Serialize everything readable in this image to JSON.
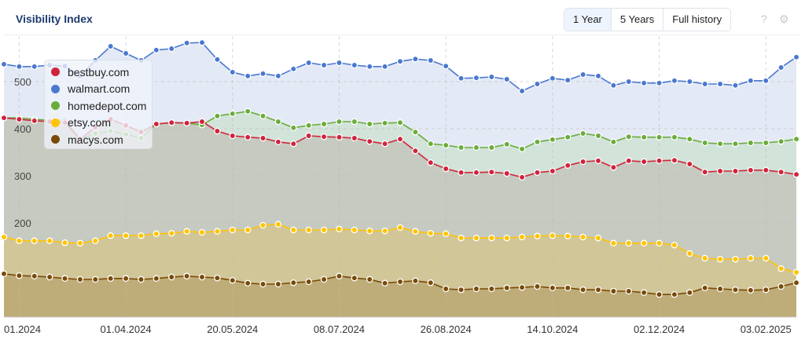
{
  "header": {
    "title": "Visibility Index",
    "range_buttons": [
      "1 Year",
      "5 Years",
      "Full history"
    ],
    "active": "1 Year",
    "help_icon": "?",
    "settings_icon": "⚙"
  },
  "chart_data": {
    "type": "area",
    "title": "Visibility Index",
    "ylim": [
      0,
      583
    ],
    "yticks": [
      200,
      300,
      400,
      500
    ],
    "x_count": 53,
    "xticks": [
      {
        "index": 1,
        "label": "01.2024"
      },
      {
        "index": 8,
        "label": "01.04.2024"
      },
      {
        "index": 15,
        "label": "20.05.2024"
      },
      {
        "index": 22,
        "label": "08.07.2024"
      },
      {
        "index": 29,
        "label": "26.08.2024"
      },
      {
        "index": 36,
        "label": "14.10.2024"
      },
      {
        "index": 43,
        "label": "02.12.2024"
      },
      {
        "index": 50,
        "label": "03.02.2025"
      }
    ],
    "grid": true,
    "legend_position": "top-left",
    "series": [
      {
        "name": "walmart.com",
        "color": "#4a78d0",
        "fill": "#dfe5f4",
        "values": [
          537,
          532,
          532,
          535,
          533,
          512,
          545,
          575,
          560,
          545,
          567,
          570,
          582,
          583,
          547,
          520,
          512,
          517,
          512,
          527,
          540,
          535,
          540,
          535,
          532,
          532,
          543,
          548,
          545,
          533,
          507,
          508,
          510,
          505,
          480,
          495,
          507,
          503,
          515,
          512,
          492,
          500,
          497,
          497,
          502,
          500,
          495,
          495,
          492,
          502,
          502,
          530,
          552
        ]
      },
      {
        "name": "homedepot.com",
        "color": "#6aad3a",
        "fill": "#cfe2d4",
        "values": [
          423,
          423,
          420,
          418,
          418,
          378,
          390,
          395,
          388,
          380,
          410,
          413,
          412,
          408,
          427,
          432,
          437,
          427,
          415,
          402,
          407,
          410,
          415,
          415,
          410,
          412,
          413,
          393,
          368,
          365,
          360,
          360,
          360,
          367,
          357,
          372,
          377,
          382,
          390,
          385,
          372,
          383,
          382,
          382,
          382,
          378,
          370,
          368,
          368,
          370,
          370,
          373,
          378
        ]
      },
      {
        "name": "bestbuy.com",
        "color": "#d0243c",
        "fill": "#c4c6bb",
        "values": [
          423,
          420,
          417,
          415,
          413,
          378,
          403,
          420,
          407,
          393,
          410,
          413,
          412,
          415,
          395,
          385,
          382,
          380,
          372,
          368,
          385,
          383,
          382,
          380,
          373,
          368,
          378,
          353,
          328,
          315,
          307,
          307,
          308,
          305,
          297,
          307,
          310,
          322,
          330,
          332,
          318,
          332,
          330,
          332,
          333,
          325,
          308,
          310,
          310,
          312,
          312,
          308,
          303
        ]
      },
      {
        "name": "etsy.com",
        "color": "#ffc400",
        "fill": "#d2c590",
        "values": [
          170,
          162,
          162,
          162,
          158,
          157,
          162,
          173,
          173,
          173,
          177,
          178,
          182,
          180,
          182,
          185,
          185,
          195,
          197,
          185,
          185,
          185,
          187,
          185,
          183,
          183,
          190,
          182,
          178,
          177,
          168,
          168,
          168,
          168,
          170,
          172,
          173,
          172,
          170,
          168,
          157,
          157,
          157,
          157,
          153,
          135,
          125,
          123,
          123,
          125,
          125,
          103,
          95
        ]
      },
      {
        "name": "macys.com",
        "color": "#7a4a08",
        "fill": "#bba872",
        "values": [
          92,
          88,
          87,
          85,
          82,
          80,
          80,
          82,
          82,
          80,
          82,
          85,
          87,
          85,
          83,
          78,
          72,
          70,
          70,
          73,
          75,
          80,
          87,
          83,
          80,
          72,
          75,
          77,
          73,
          60,
          58,
          60,
          60,
          62,
          63,
          65,
          62,
          62,
          58,
          58,
          55,
          55,
          52,
          48,
          48,
          52,
          62,
          60,
          58,
          57,
          58,
          65,
          73
        ]
      }
    ],
    "legend_order": [
      "bestbuy.com",
      "walmart.com",
      "homedepot.com",
      "etsy.com",
      "macys.com"
    ]
  }
}
